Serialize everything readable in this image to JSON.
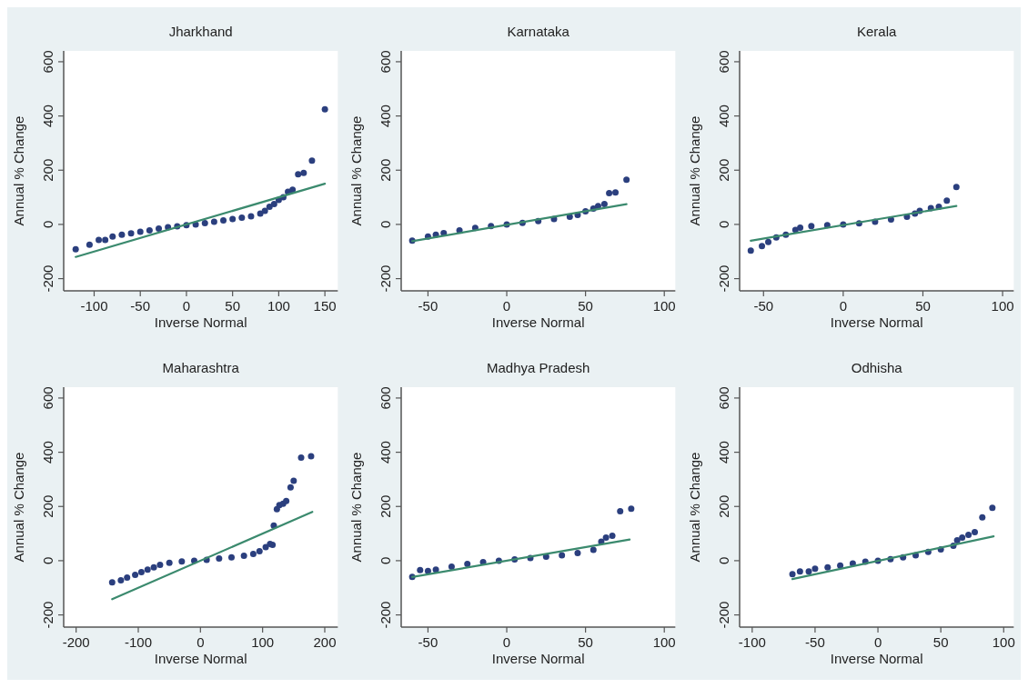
{
  "chart_data": [
    {
      "type": "scatter",
      "title": "Jharkhand",
      "xlabel": "Inverse Normal",
      "ylabel": "Annual % Change",
      "xlim": [
        -133,
        164
      ],
      "ylim": [
        -245,
        640
      ],
      "xticks": [
        -100,
        -50,
        0,
        50,
        100,
        150
      ],
      "yticks": [
        -200,
        0,
        200,
        400,
        600
      ],
      "series": [
        {
          "type": "scatter",
          "marker": "circle",
          "color": "#2b3f7e",
          "x": [
            -120,
            -105,
            -95,
            -88,
            -80,
            -70,
            -60,
            -50,
            -40,
            -30,
            -20,
            -10,
            0,
            10,
            20,
            30,
            40,
            50,
            60,
            70,
            80,
            85,
            90,
            95,
            100,
            105,
            110,
            115,
            121,
            127,
            136,
            150
          ],
          "values": [
            -92,
            -75,
            -57,
            -57,
            -45,
            -38,
            -33,
            -27,
            -22,
            -15,
            -10,
            -7,
            -3,
            0,
            5,
            10,
            15,
            20,
            25,
            30,
            40,
            50,
            65,
            75,
            90,
            100,
            120,
            128,
            185,
            190,
            235,
            425
          ]
        },
        {
          "type": "line",
          "color": "#3b8a6e",
          "x": [
            -120,
            150
          ],
          "values": [
            -120,
            150
          ]
        }
      ]
    },
    {
      "type": "scatter",
      "title": "Karnataka",
      "xlabel": "Inverse Normal",
      "ylabel": "Annual % Change",
      "xlim": [
        -67,
        107
      ],
      "ylim": [
        -245,
        640
      ],
      "xticks": [
        -50,
        0,
        50,
        100
      ],
      "yticks": [
        -200,
        0,
        200,
        400,
        600
      ],
      "series": [
        {
          "type": "scatter",
          "marker": "circle",
          "color": "#2b3f7e",
          "x": [
            -60,
            -50,
            -45,
            -40,
            -30,
            -20,
            -10,
            0,
            10,
            20,
            30,
            40,
            45,
            50,
            55,
            58,
            62,
            65,
            69,
            76
          ],
          "values": [
            -60,
            -45,
            -38,
            -32,
            -22,
            -13,
            -6,
            0,
            6,
            12,
            20,
            28,
            35,
            48,
            58,
            68,
            75,
            115,
            118,
            165
          ]
        },
        {
          "type": "line",
          "color": "#3b8a6e",
          "x": [
            -60,
            76
          ],
          "values": [
            -62,
            75
          ]
        }
      ]
    },
    {
      "type": "scatter",
      "title": "Kerala",
      "xlabel": "Inverse Normal",
      "ylabel": "Annual % Change",
      "xlim": [
        -65,
        107
      ],
      "ylim": [
        -245,
        640
      ],
      "xticks": [
        -50,
        0,
        50,
        100
      ],
      "yticks": [
        -200,
        0,
        200,
        400,
        600
      ],
      "series": [
        {
          "type": "scatter",
          "marker": "circle",
          "color": "#2b3f7e",
          "x": [
            -58,
            -51,
            -47,
            -42,
            -36,
            -30,
            -27,
            -20,
            -10,
            0,
            10,
            20,
            30,
            40,
            45,
            48,
            55,
            60,
            65,
            71
          ],
          "values": [
            -97,
            -80,
            -65,
            -48,
            -38,
            -20,
            -12,
            -6,
            -3,
            0,
            4,
            10,
            18,
            28,
            40,
            50,
            60,
            65,
            88,
            138
          ]
        },
        {
          "type": "line",
          "color": "#3b8a6e",
          "x": [
            -58,
            71
          ],
          "values": [
            -60,
            68
          ]
        }
      ]
    },
    {
      "type": "scatter",
      "title": "Maharashtra",
      "xlabel": "Inverse Normal",
      "ylabel": "Annual % Change",
      "xlim": [
        -220,
        221
      ],
      "ylim": [
        -245,
        640
      ],
      "xticks": [
        -200,
        -100,
        0,
        100,
        200
      ],
      "yticks": [
        -200,
        0,
        200,
        400,
        600
      ],
      "series": [
        {
          "type": "scatter",
          "marker": "circle",
          "color": "#2b3f7e",
          "x": [
            -142,
            -128,
            -118,
            -105,
            -95,
            -85,
            -75,
            -65,
            -50,
            -30,
            -10,
            10,
            30,
            50,
            70,
            85,
            95,
            105,
            112,
            116,
            118,
            123,
            127,
            133,
            138,
            145,
            150,
            162,
            178
          ],
          "values": [
            -80,
            -72,
            -62,
            -52,
            -42,
            -33,
            -25,
            -15,
            -8,
            -3,
            0,
            3,
            8,
            12,
            18,
            25,
            35,
            50,
            62,
            58,
            130,
            190,
            205,
            210,
            220,
            270,
            295,
            380,
            385
          ]
        },
        {
          "type": "line",
          "color": "#3b8a6e",
          "x": [
            -142,
            180
          ],
          "values": [
            -142,
            180
          ]
        }
      ]
    },
    {
      "type": "scatter",
      "title": "Madhya Pradesh",
      "xlabel": "Inverse Normal",
      "ylabel": "Annual % Change",
      "xlim": [
        -67,
        107
      ],
      "ylim": [
        -245,
        640
      ],
      "xticks": [
        -50,
        0,
        50,
        100
      ],
      "yticks": [
        -200,
        0,
        200,
        400,
        600
      ],
      "series": [
        {
          "type": "scatter",
          "marker": "circle",
          "color": "#2b3f7e",
          "x": [
            -60,
            -55,
            -50,
            -45,
            -35,
            -25,
            -15,
            -5,
            5,
            15,
            25,
            35,
            45,
            55,
            60,
            63,
            67,
            72,
            79
          ],
          "values": [
            -60,
            -35,
            -38,
            -33,
            -22,
            -12,
            -5,
            0,
            5,
            10,
            15,
            20,
            28,
            40,
            70,
            85,
            92,
            182,
            192
          ]
        },
        {
          "type": "line",
          "color": "#3b8a6e",
          "x": [
            -60,
            78
          ],
          "values": [
            -60,
            78
          ]
        }
      ]
    },
    {
      "type": "scatter",
      "title": "Odhisha",
      "xlabel": "Inverse Normal",
      "ylabel": "Annual % Change",
      "xlim": [
        -110,
        108
      ],
      "ylim": [
        -245,
        640
      ],
      "xticks": [
        -100,
        -50,
        0,
        50,
        100
      ],
      "yticks": [
        -200,
        0,
        200,
        400,
        600
      ],
      "series": [
        {
          "type": "scatter",
          "marker": "circle",
          "color": "#2b3f7e",
          "x": [
            -68,
            -62,
            -55,
            -50,
            -40,
            -30,
            -20,
            -10,
            0,
            10,
            20,
            30,
            40,
            50,
            60,
            63,
            67,
            72,
            77,
            83,
            91
          ],
          "values": [
            -50,
            -40,
            -40,
            -30,
            -25,
            -18,
            -10,
            -4,
            0,
            6,
            12,
            20,
            32,
            42,
            55,
            75,
            85,
            95,
            105,
            160,
            195
          ]
        },
        {
          "type": "line",
          "color": "#3b8a6e",
          "x": [
            -68,
            92
          ],
          "values": [
            -68,
            90
          ]
        }
      ]
    }
  ]
}
